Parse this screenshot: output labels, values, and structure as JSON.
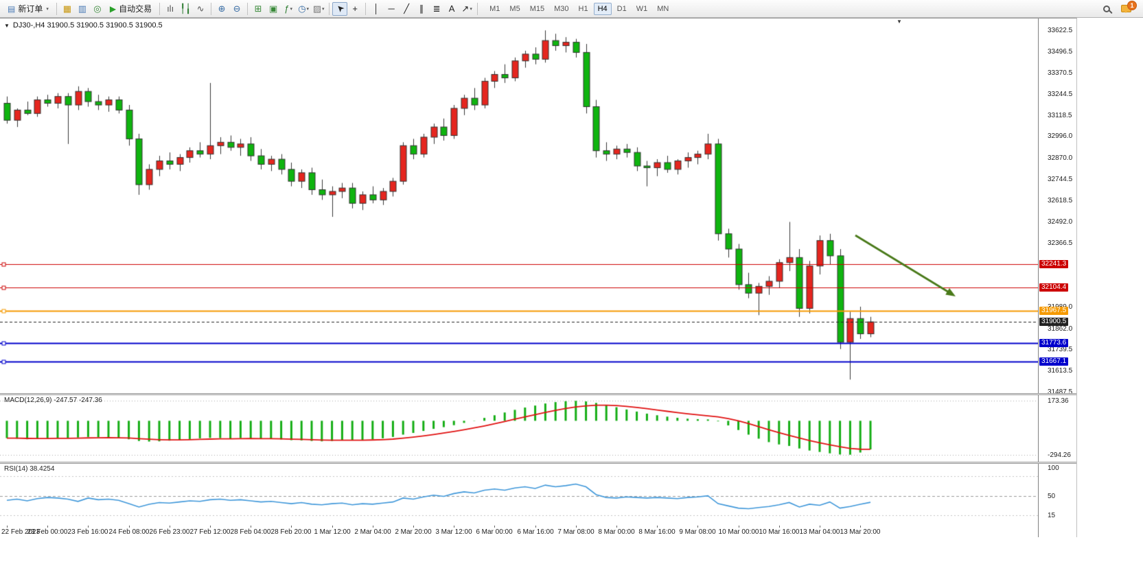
{
  "toolbar": {
    "buttons": [
      {
        "type": "button",
        "name": "new-order-button",
        "label": "新订单",
        "icon": "▤",
        "icon_color": "#4a7ab5",
        "caret": true
      },
      {
        "type": "sep"
      },
      {
        "type": "icon",
        "name": "market-watch-button",
        "glyph": "▦",
        "color": "#c8960c"
      },
      {
        "type": "icon",
        "name": "data-window-button",
        "glyph": "▥",
        "color": "#4a7ab5"
      },
      {
        "type": "icon",
        "name": "navigator-button",
        "glyph": "◎",
        "color": "#3a8a3a"
      },
      {
        "type": "button",
        "name": "auto-trading-button",
        "label": "自动交易",
        "icon": "▶",
        "icon_color": "#2aa02a"
      },
      {
        "type": "sep"
      },
      {
        "type": "icon",
        "name": "bar-chart-button",
        "glyph": "ılı",
        "color": "#555555"
      },
      {
        "type": "icon",
        "name": "candlestick-chart-button",
        "glyph": "╿╽",
        "color": "#2e7d32"
      },
      {
        "type": "icon",
        "name": "line-chart-button",
        "glyph": "∿",
        "color": "#555555"
      },
      {
        "type": "sep"
      },
      {
        "type": "icon",
        "name": "zoom-in-button",
        "glyph": "⊕",
        "color": "#3a6ea5"
      },
      {
        "type": "icon",
        "name": "zoom-out-button",
        "glyph": "⊖",
        "color": "#3a6ea5"
      },
      {
        "type": "sep"
      },
      {
        "type": "icon",
        "name": "tile-windows-button",
        "glyph": "⊞",
        "color": "#3a8a3a"
      },
      {
        "type": "icon",
        "name": "cascade-windows-button",
        "glyph": "▣",
        "color": "#3a8a3a"
      },
      {
        "type": "icon",
        "name": "add-indicator-button",
        "glyph": "ƒ",
        "color": "#2e7d32",
        "caret": true
      },
      {
        "type": "icon",
        "name": "period-button",
        "glyph": "◷",
        "color": "#3a6ea5",
        "caret": true
      },
      {
        "type": "icon",
        "name": "template-button",
        "glyph": "▨",
        "color": "#777777",
        "caret": true
      },
      {
        "type": "sep"
      },
      {
        "type": "icon",
        "name": "cursor-button",
        "glyph": "➤",
        "color": "#222222",
        "rot": -135,
        "active": true
      },
      {
        "type": "icon",
        "name": "crosshair-button",
        "glyph": "+",
        "color": "#222222"
      },
      {
        "type": "sep"
      },
      {
        "type": "icon",
        "name": "vertical-line-button",
        "glyph": "│",
        "color": "#222222"
      },
      {
        "type": "icon",
        "name": "horizontal-line-button",
        "glyph": "─",
        "color": "#222222"
      },
      {
        "type": "icon",
        "name": "trendline-button",
        "glyph": "╱",
        "color": "#222222"
      },
      {
        "type": "icon",
        "name": "equidistant-channel-button",
        "glyph": "∥",
        "color": "#222222"
      },
      {
        "type": "icon",
        "name": "fibonacci-button",
        "glyph": "≣",
        "color": "#222222"
      },
      {
        "type": "icon",
        "name": "text-button",
        "glyph": "A",
        "color": "#222222"
      },
      {
        "type": "icon",
        "name": "arrows-button",
        "glyph": "↗",
        "color": "#222222",
        "caret": true
      },
      {
        "type": "sep"
      }
    ],
    "timeframes": [
      "M1",
      "M5",
      "M15",
      "M30",
      "H1",
      "H4",
      "D1",
      "W1",
      "MN"
    ],
    "active_timeframe": "H4",
    "notification_count": "1"
  },
  "chart": {
    "header": "DJ30-,H4 31900.5 31900.5 31900.5 31900.5",
    "collapse_caret": "▼",
    "shift_marker": "▼"
  },
  "indicators": {
    "macd_label": "MACD(12,26,9) -247.57 -247.36",
    "rsi_label": "RSI(14) 38.4254"
  },
  "chart_data": {
    "type": "candlestick",
    "symbol": "DJ30-",
    "period": "H4",
    "up_color": "#e5261f",
    "down_color": "#0fb40f",
    "price_scale": {
      "max": 33690,
      "min": 31480
    },
    "y_ticks": [
      "33622.5",
      "33496.5",
      "33370.5",
      "33244.5",
      "33118.5",
      "32996.0",
      "32870.0",
      "32744.5",
      "32618.5",
      "32492.0",
      "32366.5",
      "31989.0",
      "31862.0",
      "31739.5",
      "31613.5",
      "31487.5"
    ],
    "levels": [
      {
        "price": 32241.3,
        "label": "32241.3",
        "color": "#cc0000",
        "width": 1,
        "dashed": false
      },
      {
        "price": 32104.4,
        "label": "32104.4",
        "color": "#cc0000",
        "width": 1,
        "dashed": false
      },
      {
        "price": 31967.5,
        "label": "31967.5",
        "color": "#f59a00",
        "width": 2,
        "dashed": false
      },
      {
        "price": 31900.5,
        "label": "31900.5",
        "color": "#222222",
        "width": 1,
        "dashed": true,
        "current": true
      },
      {
        "price": 31773.6,
        "label": "31773.6",
        "color": "#0000cc",
        "width": 2,
        "dashed": false
      },
      {
        "price": 31667.1,
        "label": "31667.1",
        "color": "#0000cc",
        "width": 2,
        "dashed": false
      }
    ],
    "current_price": "31900.5",
    "ohlc": [
      [
        33190,
        33230,
        33070,
        33090
      ],
      [
        33090,
        33160,
        33050,
        33150
      ],
      [
        33150,
        33200,
        33120,
        33130
      ],
      [
        33130,
        33230,
        33110,
        33210
      ],
      [
        33210,
        33240,
        33170,
        33190
      ],
      [
        33190,
        33250,
        33160,
        33230
      ],
      [
        33230,
        33250,
        32950,
        33180
      ],
      [
        33180,
        33290,
        33150,
        33260
      ],
      [
        33260,
        33280,
        33170,
        33200
      ],
      [
        33200,
        33240,
        33150,
        33180
      ],
      [
        33180,
        33230,
        33140,
        33210
      ],
      [
        33210,
        33230,
        33130,
        33150
      ],
      [
        33150,
        33180,
        32940,
        32980
      ],
      [
        32980,
        33010,
        32650,
        32710
      ],
      [
        32710,
        32830,
        32680,
        32800
      ],
      [
        32800,
        32880,
        32760,
        32850
      ],
      [
        32850,
        32900,
        32800,
        32830
      ],
      [
        32830,
        32890,
        32790,
        32870
      ],
      [
        32870,
        32930,
        32840,
        32910
      ],
      [
        32910,
        32960,
        32870,
        32890
      ],
      [
        32890,
        33310,
        32860,
        32940
      ],
      [
        32940,
        32990,
        32890,
        32960
      ],
      [
        32960,
        33000,
        32910,
        32930
      ],
      [
        32930,
        32980,
        32880,
        32950
      ],
      [
        32950,
        32990,
        32850,
        32880
      ],
      [
        32880,
        32920,
        32800,
        32830
      ],
      [
        32830,
        32880,
        32790,
        32860
      ],
      [
        32860,
        32890,
        32770,
        32800
      ],
      [
        32800,
        32840,
        32700,
        32730
      ],
      [
        32730,
        32800,
        32690,
        32780
      ],
      [
        32780,
        32810,
        32650,
        32680
      ],
      [
        32680,
        32740,
        32620,
        32650
      ],
      [
        32650,
        32700,
        32520,
        32670
      ],
      [
        32670,
        32720,
        32630,
        32690
      ],
      [
        32690,
        32720,
        32570,
        32600
      ],
      [
        32600,
        32670,
        32560,
        32650
      ],
      [
        32650,
        32700,
        32600,
        32620
      ],
      [
        32620,
        32690,
        32590,
        32670
      ],
      [
        32670,
        32750,
        32640,
        32730
      ],
      [
        32730,
        32960,
        32710,
        32940
      ],
      [
        32940,
        32980,
        32860,
        32890
      ],
      [
        32890,
        33010,
        32870,
        32990
      ],
      [
        32990,
        33070,
        32950,
        33050
      ],
      [
        33050,
        33100,
        32970,
        33000
      ],
      [
        33000,
        33180,
        32980,
        33160
      ],
      [
        33160,
        33240,
        33120,
        33220
      ],
      [
        33220,
        33280,
        33150,
        33180
      ],
      [
        33180,
        33340,
        33160,
        33320
      ],
      [
        33320,
        33380,
        33280,
        33360
      ],
      [
        33360,
        33420,
        33310,
        33340
      ],
      [
        33340,
        33460,
        33320,
        33440
      ],
      [
        33440,
        33500,
        33400,
        33480
      ],
      [
        33480,
        33520,
        33420,
        33450
      ],
      [
        33450,
        33620,
        33430,
        33560
      ],
      [
        33560,
        33600,
        33500,
        33530
      ],
      [
        33530,
        33580,
        33490,
        33550
      ],
      [
        33550,
        33570,
        33460,
        33490
      ],
      [
        33490,
        33540,
        33130,
        33170
      ],
      [
        33170,
        33210,
        32870,
        32910
      ],
      [
        32910,
        32960,
        32850,
        32890
      ],
      [
        32890,
        32940,
        32860,
        32920
      ],
      [
        32920,
        32950,
        32870,
        32900
      ],
      [
        32900,
        32930,
        32790,
        32820
      ],
      [
        32820,
        32850,
        32700,
        32810
      ],
      [
        32810,
        32860,
        32760,
        32840
      ],
      [
        32840,
        32880,
        32780,
        32800
      ],
      [
        32800,
        32860,
        32770,
        32850
      ],
      [
        32850,
        32900,
        32810,
        32870
      ],
      [
        32870,
        32910,
        32830,
        32890
      ],
      [
        32890,
        33010,
        32860,
        32950
      ],
      [
        32950,
        32980,
        32380,
        32420
      ],
      [
        32420,
        32450,
        32280,
        32330
      ],
      [
        32330,
        32360,
        32090,
        32120
      ],
      [
        32120,
        32190,
        32040,
        32070
      ],
      [
        32070,
        32130,
        31940,
        32110
      ],
      [
        32110,
        32170,
        32060,
        32140
      ],
      [
        32140,
        32270,
        32100,
        32250
      ],
      [
        32250,
        32490,
        32200,
        32280
      ],
      [
        32280,
        32330,
        31930,
        31980
      ],
      [
        31980,
        32260,
        31950,
        32230
      ],
      [
        32230,
        32410,
        32180,
        32380
      ],
      [
        32380,
        32420,
        32240,
        32290
      ],
      [
        32290,
        32330,
        31740,
        31780
      ],
      [
        31780,
        31960,
        31560,
        31920
      ],
      [
        31920,
        31990,
        31800,
        31830
      ],
      [
        31830,
        31930,
        31810,
        31900.5
      ]
    ],
    "time_labels": [
      "22 Feb 2023",
      "23 Feb 00:00",
      "23 Feb 16:00",
      "24 Feb 08:00",
      "26 Feb 23:00",
      "27 Feb 12:00",
      "28 Feb 04:00",
      "28 Feb 20:00",
      "1 Mar 12:00",
      "2 Mar 04:00",
      "2 Mar 20:00",
      "3 Mar 12:00",
      "6 Mar 00:00",
      "6 Mar 16:00",
      "7 Mar 08:00",
      "8 Mar 00:00",
      "8 Mar 16:00",
      "9 Mar 08:00",
      "10 Mar 00:00",
      "10 Mar 16:00",
      "13 Mar 04:00",
      "13 Mar 20:00"
    ],
    "macd": {
      "scale_max": "173.36",
      "scale_min": "-294.26",
      "values": [
        -150,
        -155,
        -160,
        -158,
        -152,
        -148,
        -150,
        -145,
        -140,
        -142,
        -145,
        -148,
        -160,
        -175,
        -180,
        -178,
        -172,
        -165,
        -158,
        -152,
        -148,
        -150,
        -153,
        -150,
        -152,
        -156,
        -158,
        -162,
        -168,
        -170,
        -175,
        -178,
        -175,
        -170,
        -168,
        -165,
        -160,
        -152,
        -140,
        -120,
        -105,
        -88,
        -70,
        -55,
        -38,
        -18,
        2,
        25,
        48,
        72,
        95,
        115,
        132,
        150,
        162,
        170,
        173,
        168,
        155,
        138,
        118,
        98,
        80,
        62,
        48,
        36,
        26,
        18,
        14,
        12,
        -5,
        -40,
        -80,
        -120,
        -155,
        -185,
        -205,
        -218,
        -240,
        -258,
        -270,
        -282,
        -292,
        -294,
        -275,
        -248
      ]
    },
    "rsi": {
      "scale_ticks": [
        "100",
        "50",
        "15"
      ],
      "level_lines": [
        85,
        50,
        15
      ],
      "values": [
        42,
        44,
        41,
        45,
        47,
        46,
        44,
        40,
        46,
        43,
        44,
        42,
        36,
        30,
        35,
        38,
        37,
        39,
        41,
        40,
        43,
        44,
        42,
        43,
        41,
        39,
        40,
        38,
        36,
        38,
        35,
        34,
        36,
        37,
        34,
        36,
        35,
        37,
        39,
        46,
        44,
        48,
        51,
        49,
        54,
        57,
        55,
        60,
        62,
        60,
        64,
        66,
        63,
        69,
        66,
        68,
        71,
        66,
        52,
        47,
        46,
        48,
        47,
        46,
        47,
        46,
        45,
        47,
        48,
        50,
        36,
        32,
        28,
        27,
        29,
        31,
        34,
        38,
        30,
        35,
        33,
        39,
        28,
        31,
        35,
        38.4
      ]
    },
    "annotations": [
      {
        "type": "arrow",
        "from": [
          1246,
          316
        ],
        "to": [
          1392,
          405
        ],
        "color": "#4a7a1a",
        "width": 3
      }
    ]
  }
}
